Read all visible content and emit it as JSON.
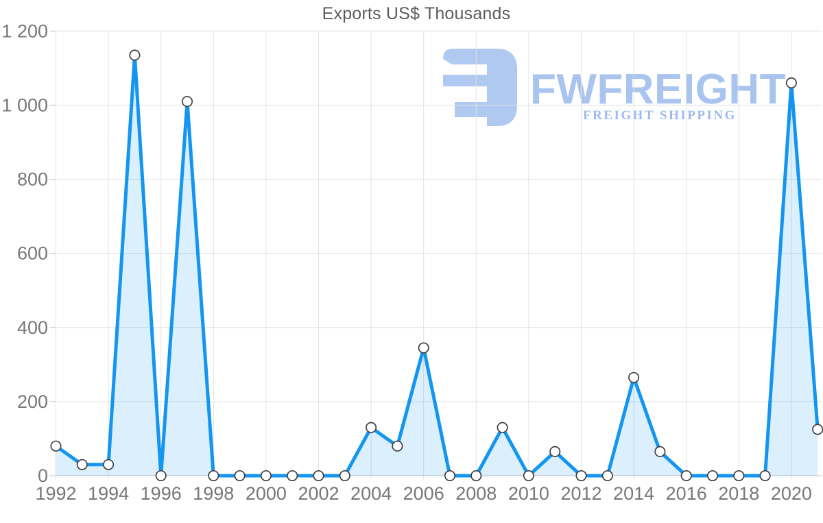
{
  "title": "Exports US$ Thousands",
  "logo": {
    "name": "FWFREIGHT",
    "tagline": "FREIGHT SHIPPING",
    "icon": "fwfreight-mark"
  },
  "chart_data": {
    "type": "area",
    "title": "Exports US$ Thousands",
    "series_name": "Exports US$ Thousands",
    "x": [
      1992,
      1993,
      1994,
      1995,
      1996,
      1997,
      1998,
      1999,
      2000,
      2001,
      2002,
      2003,
      2004,
      2005,
      2006,
      2007,
      2008,
      2009,
      2010,
      2011,
      2012,
      2013,
      2014,
      2015,
      2016,
      2017,
      2018,
      2019,
      2020,
      2021
    ],
    "values": [
      80,
      30,
      30,
      1135,
      0,
      1010,
      0,
      0,
      0,
      0,
      0,
      0,
      130,
      80,
      345,
      0,
      0,
      130,
      0,
      65,
      0,
      0,
      265,
      65,
      0,
      0,
      0,
      0,
      1060,
      125
    ],
    "ylim": [
      0,
      1200
    ],
    "y_ticks": [
      0,
      200,
      400,
      600,
      800,
      1000,
      1200
    ],
    "y_tick_labels": [
      "0",
      "200",
      "400",
      "600",
      "800",
      "1 000",
      "1 200"
    ],
    "x_tick_years": [
      1992,
      1994,
      1996,
      1998,
      2000,
      2002,
      2004,
      2006,
      2008,
      2010,
      2012,
      2014,
      2016,
      2018,
      2020
    ],
    "x_tick_labels": [
      "1992",
      "1994",
      "1996",
      "1998",
      "2000",
      "2002",
      "2004",
      "2006",
      "2008",
      "2010",
      "2012",
      "2014",
      "2016",
      "2018",
      "2020"
    ],
    "grid": true,
    "legend": false,
    "colors": {
      "line": "#1496f0",
      "area_fill": "rgba(20,150,240,0.15)",
      "marker_fill": "#ffffff",
      "marker_stroke": "#404040",
      "grid": "#e2e2e2",
      "axis": "#c6c6c6",
      "tick_label": "#787878",
      "title": "#5c5c5c",
      "logo_primary": "#a9c4ef",
      "logo_tagline": "#9cbbec"
    }
  }
}
